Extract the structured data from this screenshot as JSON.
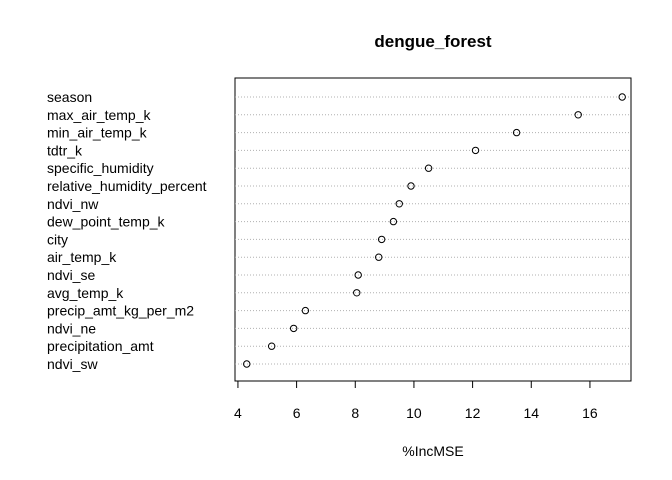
{
  "chart_data": {
    "type": "scatter",
    "subtype": "dotchart",
    "title": "dengue_forest",
    "xlabel": "%IncMSE",
    "ylabel": "",
    "xlim": [
      3.9,
      17.4
    ],
    "xticks": [
      4,
      6,
      8,
      10,
      12,
      14,
      16
    ],
    "grid": "dotted horizontal",
    "marker": "open-circle",
    "categories": [
      "season",
      "max_air_temp_k",
      "min_air_temp_k",
      "tdtr_k",
      "specific_humidity",
      "relative_humidity_percent",
      "ndvi_nw",
      "dew_point_temp_k",
      "city",
      "air_temp_k",
      "ndvi_se",
      "avg_temp_k",
      "precip_amt_kg_per_m2",
      "ndvi_ne",
      "precipitation_amt",
      "ndvi_sw"
    ],
    "values": [
      17.1,
      15.6,
      13.5,
      12.1,
      10.5,
      9.9,
      9.5,
      9.3,
      8.9,
      8.8,
      8.1,
      8.05,
      6.3,
      5.9,
      5.15,
      4.3
    ]
  }
}
